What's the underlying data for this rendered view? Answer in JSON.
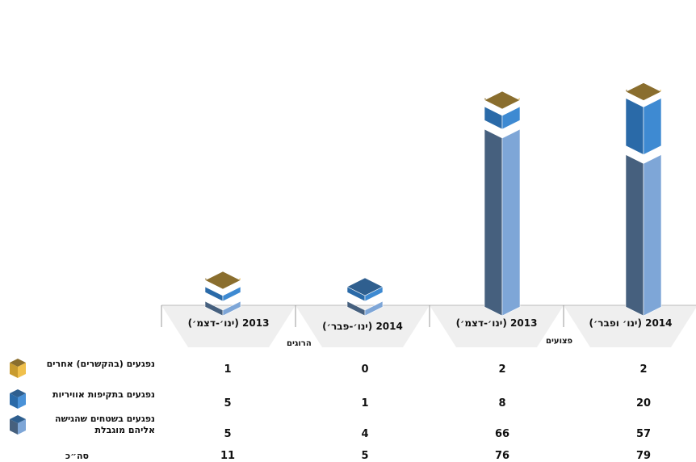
{
  "chart_data": {
    "type": "bar",
    "stacked": true,
    "style": "3d-cuboid",
    "groups": [
      {
        "label": "הרוגים",
        "category_indices": [
          0,
          1
        ]
      },
      {
        "label": "פצועים",
        "category_indices": [
          2,
          3
        ]
      }
    ],
    "categories": [
      "2013 (ינו׳-דצמ׳)",
      "2014 (ינו׳-פבר׳)",
      "2013 (ינו׳-דצמ׳)",
      "2014 (ינו׳ ופבר׳)"
    ],
    "series": [
      {
        "name": "נפגעים בשטחים שהגישה אליהם מוגבלת",
        "values": [
          5,
          4,
          66,
          57
        ],
        "color_left": "#46607e",
        "color_right": "#7ea6d7",
        "color_top": "#2f5f8f"
      },
      {
        "name": "נפגעים בתקיפות אוויריות",
        "values": [
          5,
          1,
          8,
          20
        ],
        "color_left": "#2a6aa8",
        "color_right": "#3e8ad2",
        "color_top": "#2f5f8f"
      },
      {
        "name": "נפגעים (בהקשרים) אחרים",
        "values": [
          1,
          0,
          2,
          2
        ],
        "color_left": "#8b6f2b",
        "color_right": "#e7b74a",
        "color_top": "#8a6e2e"
      }
    ],
    "totals_label": "סה״כ",
    "totals": [
      11,
      5,
      76,
      79
    ]
  }
}
